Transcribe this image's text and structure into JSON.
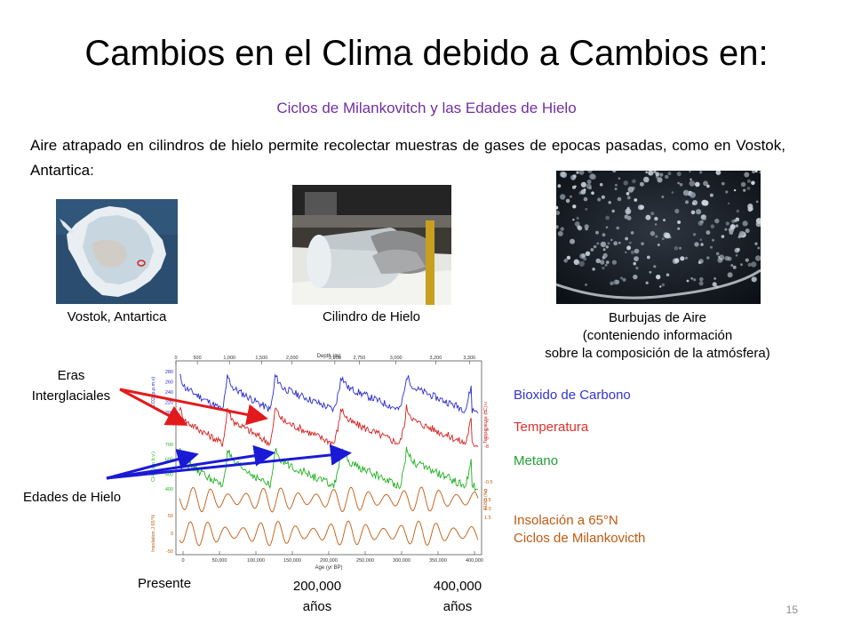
{
  "slide": {
    "title": "Cambios en el Clima debido a Cambios en:",
    "subtitle": "Ciclos de Milankovitch y las Edades de Hielo",
    "intro": "Aire atrapado en cilindros de hielo permite recolectar muestras de gases de epocas pasadas, como en Vostok, Antartica:",
    "slide_number": "15"
  },
  "photos": [
    {
      "caption": "Vostok, Antartica",
      "icon": "antarctica-map-image"
    },
    {
      "caption": "Cilindro de Hielo",
      "icon": "ice-core-photo"
    },
    {
      "caption_lines": [
        "Burbujas de Aire",
        "(conteniendo información",
        "sobre la composición de la atmósfera)"
      ],
      "icon": "air-bubbles-photo"
    }
  ],
  "annotations": {
    "interglacial_lines": [
      "Eras",
      "Interglaciales"
    ],
    "ice_ages": "Edades de Hielo",
    "colors": {
      "red": "#e31a1c",
      "blue": "#1a1ad6"
    }
  },
  "legend": {
    "co2": {
      "label": "Bioxido de Carbono",
      "color": "#3333cc"
    },
    "temp": {
      "label": "Temperatura",
      "color": "#e0302a"
    },
    "methane": {
      "label": "Metano",
      "color": "#22a033"
    },
    "insolation": {
      "lines": [
        "Insolación a 65°N",
        "Ciclos de Milankovicth"
      ],
      "color": "#c05a10"
    }
  },
  "age_labels": {
    "presente": "Presente",
    "a200": [
      "200,000",
      "años"
    ],
    "a400": [
      "400,000",
      "años"
    ]
  },
  "chart_data": {
    "type": "line",
    "top_axis": {
      "label": "Depth (m)",
      "ticks": [
        "0",
        "500",
        "1,000",
        "1,500",
        "2,000",
        "2,500",
        "2,750",
        "3,000",
        "3,200",
        "3,300"
      ]
    },
    "bottom_axis": {
      "label": "Age (yr BP)",
      "ticks": [
        "0",
        "50,000",
        "100,000",
        "150,000",
        "200,000",
        "250,000",
        "300,000",
        "350,000",
        "400,000"
      ]
    },
    "series": [
      {
        "name": "CO2 (p.p.m.v)",
        "color": "#2a2ad0",
        "ylim": [
          180,
          300
        ],
        "ticks": [
          "280",
          "260",
          "240",
          "220",
          "200"
        ]
      },
      {
        "name": "Temperature (°C)",
        "color": "#d42020",
        "ylim": [
          -10,
          4
        ],
        "ticks": [
          "2",
          "0",
          "-2",
          "-4",
          "-6",
          "-8"
        ]
      },
      {
        "name": "CH4 (p.p.b.v.)",
        "color": "#22b022",
        "ylim": [
          300,
          800
        ],
        "ticks": [
          "700",
          "600",
          "500",
          "400"
        ]
      },
      {
        "name": "δ18O (‰)",
        "color": "#c05a10",
        "ticks": [
          "-0.5",
          "0",
          "0.5",
          "1.0",
          "1.5"
        ]
      },
      {
        "name": "Insolation J 65°N",
        "color": "#c05a10",
        "ticks": [
          "50",
          "0",
          "-50"
        ]
      }
    ]
  }
}
